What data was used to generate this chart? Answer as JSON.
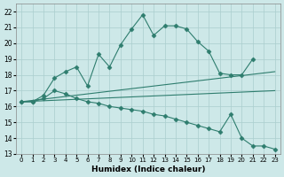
{
  "xlabel": "Humidex (Indice chaleur)",
  "bg_color": "#cde8e8",
  "grid_color": "#aacece",
  "line_color": "#2e7d6e",
  "xlim": [
    -0.5,
    23.5
  ],
  "ylim": [
    13,
    22.5
  ],
  "yticks": [
    13,
    14,
    15,
    16,
    17,
    18,
    19,
    20,
    21,
    22
  ],
  "xticks": [
    0,
    1,
    2,
    3,
    4,
    5,
    6,
    7,
    8,
    9,
    10,
    11,
    12,
    13,
    14,
    15,
    16,
    17,
    18,
    19,
    20,
    21,
    22,
    23
  ],
  "series": [
    {
      "x": [
        0,
        1,
        2,
        3,
        4,
        5,
        6,
        7,
        8,
        9,
        10,
        11,
        12,
        13,
        14,
        15,
        16,
        17,
        18,
        19,
        20,
        21
      ],
      "y": [
        16.3,
        16.3,
        16.7,
        17.8,
        18.2,
        18.5,
        17.3,
        19.3,
        18.5,
        19.9,
        20.9,
        21.8,
        20.5,
        21.1,
        21.1,
        20.9,
        20.1,
        19.5,
        18.1,
        18.0,
        18.0,
        19.0
      ],
      "marker": "D",
      "markersize": 2.5,
      "lw": 0.8
    },
    {
      "x": [
        0,
        23
      ],
      "y": [
        16.3,
        18.2
      ],
      "marker": null,
      "markersize": 0,
      "lw": 0.8
    },
    {
      "x": [
        0,
        23
      ],
      "y": [
        16.3,
        17.0
      ],
      "marker": null,
      "markersize": 0,
      "lw": 0.8
    },
    {
      "x": [
        0,
        1,
        2,
        3,
        4,
        5,
        6,
        7,
        8,
        9,
        10,
        11,
        12,
        13,
        14,
        15,
        16,
        17,
        18,
        19,
        20,
        21,
        22,
        23
      ],
      "y": [
        16.3,
        16.3,
        16.5,
        17.0,
        16.8,
        16.5,
        16.3,
        16.2,
        16.0,
        15.9,
        15.8,
        15.7,
        15.5,
        15.4,
        15.2,
        15.0,
        14.8,
        14.6,
        14.4,
        15.5,
        14.0,
        13.5,
        13.5,
        13.3
      ],
      "marker": "D",
      "markersize": 2.5,
      "lw": 0.8
    }
  ]
}
